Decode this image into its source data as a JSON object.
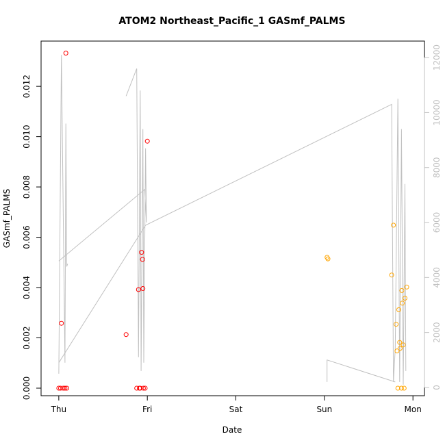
{
  "chart_data": {
    "type": "scatter",
    "title": "ATOM2 Northeast_Pacific_1 GASmf_PALMS",
    "xlabel": "Date",
    "ylabel": "GASmf_PALMS",
    "x_ticks": [
      {
        "day": 0,
        "label": "Thu"
      },
      {
        "day": 1,
        "label": "Fri"
      },
      {
        "day": 2,
        "label": "Sat"
      },
      {
        "day": 3,
        "label": "Sun"
      },
      {
        "day": 4,
        "label": "Mon"
      }
    ],
    "xlim": [
      -0.2,
      4.13
    ],
    "ylim": [
      -0.0003,
      0.0138
    ],
    "y_ticks": [
      "0.000",
      "0.002",
      "0.004",
      "0.006",
      "0.008",
      "0.010",
      "0.012"
    ],
    "y_tick_values": [
      0,
      0.002,
      0.004,
      0.006,
      0.008,
      0.01,
      0.012
    ],
    "y2lim": [
      -300,
      12600
    ],
    "y2_ticks": [
      "0",
      "2000",
      "4000",
      "6000",
      "8000",
      "10000",
      "12000"
    ],
    "y2_tick_values": [
      0,
      2000,
      4000,
      6000,
      8000,
      10000,
      12000
    ],
    "colors": {
      "red": "#ff0000",
      "orange": "#ffa500",
      "line": "#c0c0c0"
    },
    "series": [
      {
        "color": "red",
        "points": [
          [
            0.0,
            0.0
          ],
          [
            0.02,
            0.0
          ],
          [
            0.03,
            0.00258
          ],
          [
            0.05,
            0.0
          ],
          [
            0.07,
            0.0
          ],
          [
            0.08,
            0.01332
          ],
          [
            0.09,
            0.0
          ],
          [
            0.76,
            0.00213
          ],
          [
            0.88,
            0.0
          ],
          [
            0.9,
            0.00392
          ],
          [
            0.91,
            0.0
          ],
          [
            0.92,
            0.0
          ],
          [
            0.935,
            0.0054
          ],
          [
            0.945,
            0.00512
          ],
          [
            0.95,
            0.00396
          ],
          [
            0.955,
            0.0
          ],
          [
            0.975,
            0.0
          ],
          [
            1.0,
            0.00982
          ]
        ]
      },
      {
        "color": "orange",
        "points": [
          [
            3.03,
            0.0052
          ],
          [
            3.04,
            0.00514
          ],
          [
            3.76,
            0.0045
          ],
          [
            3.78,
            0.00648
          ],
          [
            3.81,
            0.00254
          ],
          [
            3.82,
            0.00148
          ],
          [
            3.83,
            0.0
          ],
          [
            3.84,
            0.00312
          ],
          [
            3.85,
            0.00182
          ],
          [
            3.855,
            0.00158
          ],
          [
            3.87,
            0.0
          ],
          [
            3.875,
            0.00388
          ],
          [
            3.88,
            0.00338
          ],
          [
            3.89,
            0.00172
          ],
          [
            3.9,
            0.0
          ],
          [
            3.91,
            0.00358
          ],
          [
            3.93,
            0.00402
          ]
        ]
      }
    ],
    "secondary_line": {
      "color": "line",
      "segments": [
        [
          [
            0.0,
            500
          ],
          [
            0.03,
            12100
          ],
          [
            0.07,
            900
          ],
          [
            0.08,
            9600
          ],
          [
            0.09,
            4400
          ],
          [
            0.1,
            4500
          ]
        ],
        [
          [
            0.76,
            10600
          ],
          [
            0.88,
            11600
          ],
          [
            0.9,
            1100
          ],
          [
            0.92,
            10800
          ],
          [
            0.93,
            600
          ],
          [
            0.95,
            9400
          ],
          [
            0.96,
            900
          ],
          [
            0.98,
            8700
          ],
          [
            0.99,
            6000
          ],
          [
            0.97,
            7200
          ],
          [
            0.0,
            4600
          ]
        ],
        [
          [
            0.0,
            900
          ],
          [
            0.98,
            5900
          ],
          [
            3.76,
            10300
          ],
          [
            3.78,
            200
          ],
          [
            3.8,
            1400
          ],
          [
            3.83,
            10500
          ],
          [
            3.85,
            200
          ],
          [
            3.87,
            9400
          ],
          [
            3.89,
            100
          ],
          [
            3.91,
            7400
          ],
          [
            3.92,
            600
          ]
        ],
        [
          [
            3.03,
            200
          ],
          [
            3.03,
            1000
          ],
          [
            3.8,
            200
          ]
        ]
      ]
    }
  }
}
